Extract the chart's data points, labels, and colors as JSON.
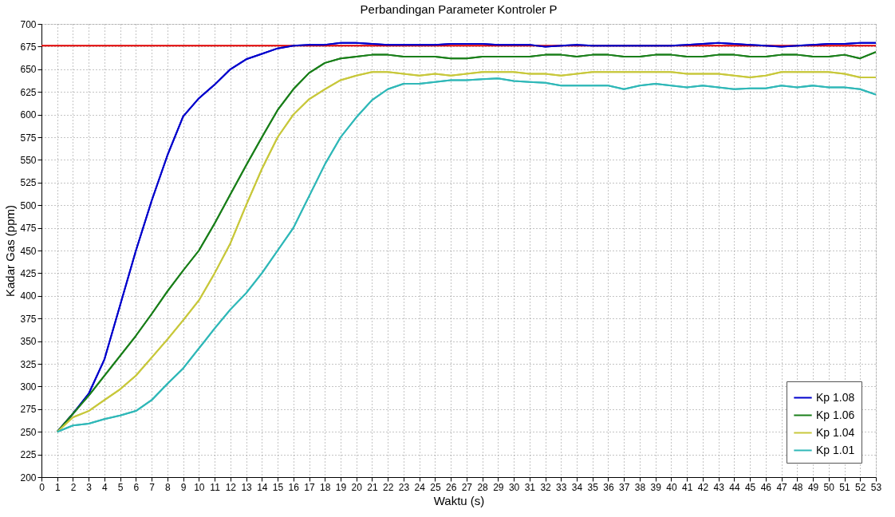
{
  "chart_data": {
    "type": "line",
    "title": "Perbandingan Parameter Kontroler P",
    "xlabel": "Waktu (s)",
    "ylabel": "Kadar Gas (ppm)",
    "x": [
      1,
      2,
      3,
      4,
      5,
      6,
      7,
      8,
      9,
      10,
      11,
      12,
      13,
      14,
      15,
      16,
      17,
      18,
      19,
      20,
      21,
      22,
      23,
      24,
      25,
      26,
      27,
      28,
      29,
      30,
      31,
      32,
      33,
      34,
      35,
      36,
      37,
      38,
      39,
      40,
      41,
      42,
      43,
      44,
      45,
      46,
      47,
      48,
      49,
      50,
      51,
      52,
      53
    ],
    "series": [
      {
        "name": "Kp 1.08",
        "color": "#0000cc",
        "values": [
          250,
          270,
          292,
          330,
          390,
          450,
          505,
          555,
          598,
          618,
          633,
          650,
          661,
          667,
          673,
          676,
          677,
          677,
          679,
          679,
          678,
          677,
          677,
          677,
          677,
          678,
          678,
          678,
          677,
          677,
          677,
          675,
          676,
          677,
          676,
          676,
          676,
          676,
          676,
          676,
          677,
          678,
          679,
          678,
          677,
          676,
          675,
          676,
          677,
          678,
          678,
          679,
          679
        ]
      },
      {
        "name": "Kp 1.06",
        "color": "#1a7f1a",
        "values": [
          250,
          270,
          290,
          312,
          334,
          356,
          380,
          405,
          428,
          450,
          480,
          512,
          544,
          575,
          605,
          628,
          646,
          657,
          662,
          664,
          666,
          666,
          664,
          664,
          664,
          662,
          662,
          664,
          664,
          664,
          664,
          666,
          666,
          664,
          666,
          666,
          664,
          664,
          666,
          666,
          664,
          664,
          666,
          666,
          664,
          664,
          666,
          666,
          664,
          664,
          666,
          662,
          669
        ]
      },
      {
        "name": "Kp 1.04",
        "color": "#c8c83c",
        "values": [
          250,
          266,
          273,
          285,
          297,
          312,
          332,
          352,
          373,
          395,
          425,
          458,
          500,
          540,
          575,
          600,
          617,
          628,
          638,
          643,
          647,
          647,
          645,
          643,
          645,
          643,
          645,
          647,
          647,
          647,
          645,
          645,
          643,
          645,
          647,
          647,
          647,
          647,
          647,
          647,
          645,
          645,
          645,
          643,
          641,
          643,
          647,
          647,
          647,
          647,
          645,
          641,
          641
        ]
      },
      {
        "name": "Kp 1.01",
        "color": "#30b8b8",
        "values": [
          250,
          257,
          259,
          264,
          268,
          273,
          285,
          303,
          320,
          342,
          364,
          385,
          403,
          425,
          450,
          475,
          510,
          545,
          575,
          597,
          616,
          628,
          634,
          634,
          636,
          638,
          638,
          639,
          640,
          637,
          636,
          635,
          632,
          632,
          632,
          632,
          628,
          632,
          634,
          632,
          630,
          632,
          630,
          628,
          629,
          629,
          632,
          630,
          632,
          630,
          630,
          628,
          622
        ]
      }
    ],
    "ref_lines": [
      {
        "axis": "y",
        "value": 676,
        "color": "#e00000"
      }
    ],
    "xlim": [
      0,
      53
    ],
    "xticks": [
      0,
      1,
      2,
      3,
      4,
      5,
      6,
      7,
      8,
      9,
      10,
      11,
      12,
      13,
      14,
      15,
      16,
      17,
      18,
      19,
      20,
      21,
      22,
      23,
      24,
      25,
      26,
      27,
      28,
      29,
      30,
      31,
      32,
      33,
      34,
      35,
      36,
      37,
      38,
      39,
      40,
      41,
      42,
      43,
      44,
      45,
      46,
      47,
      48,
      49,
      50,
      51,
      52,
      53
    ],
    "ylim": [
      200,
      700
    ],
    "yticks": [
      200,
      225,
      250,
      275,
      300,
      325,
      350,
      375,
      400,
      425,
      450,
      475,
      500,
      525,
      550,
      575,
      600,
      625,
      650,
      675,
      700
    ],
    "grid": true,
    "legend": "bottom right",
    "marker": "none",
    "line_style": "solid"
  }
}
